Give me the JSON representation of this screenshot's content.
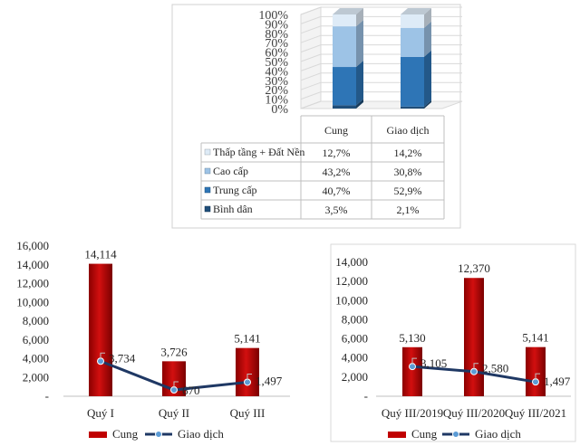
{
  "chart_data": [
    {
      "type": "bar",
      "subtype": "stacked-100-3d-with-data-table",
      "categories": [
        "Cung",
        "Giao dịch"
      ],
      "series": [
        {
          "name": "Bình dân",
          "values": [
            3.5,
            2.1
          ],
          "labels": [
            "3,5%",
            "2,1%"
          ],
          "color": "#1F4E79"
        },
        {
          "name": "Trung cấp",
          "values": [
            40.7,
            52.9
          ],
          "labels": [
            "40,7%",
            "52,9%"
          ],
          "color": "#2E75B6"
        },
        {
          "name": "Cao cấp",
          "values": [
            43.2,
            30.8
          ],
          "labels": [
            "43,2%",
            "30,8%"
          ],
          "color": "#9DC3E6"
        },
        {
          "name": "Thấp tầng + Đất Nền",
          "values": [
            12.7,
            14.2
          ],
          "labels": [
            "12,7%",
            "14,2%"
          ],
          "color": "#DEEBF7"
        }
      ],
      "y_ticks": [
        "0%",
        "10%",
        "20%",
        "30%",
        "40%",
        "50%",
        "60%",
        "70%",
        "80%",
        "90%",
        "100%"
      ],
      "ylim": [
        0,
        100
      ],
      "grid": true
    },
    {
      "type": "bar",
      "subtype": "bar-line-combo",
      "categories": [
        "Quý I",
        "Quý II",
        "Quý III"
      ],
      "series": [
        {
          "name": "Cung",
          "type": "bar",
          "values": [
            14114,
            3726,
            5141
          ],
          "labels": [
            "14,114",
            "3,726",
            "5,141"
          ],
          "color": "#C00000"
        },
        {
          "name": "Giao dịch",
          "type": "line",
          "values": [
            3734,
            670,
            1497
          ],
          "labels": [
            "3,734",
            "670",
            "1,497"
          ],
          "color": "#1F3864"
        }
      ],
      "y_ticks": [
        "-",
        "2,000",
        "4,000",
        "6,000",
        "8,000",
        "10,000",
        "12,000",
        "14,000",
        "16,000"
      ],
      "ylim": [
        0,
        16000
      ],
      "grid": false,
      "legend": "bottom"
    },
    {
      "type": "bar",
      "subtype": "bar-line-combo",
      "categories": [
        "Quý III/2019",
        "Quý III/2020",
        "Quý III/2021"
      ],
      "series": [
        {
          "name": "Cung",
          "type": "bar",
          "values": [
            5130,
            12370,
            5141
          ],
          "labels": [
            "5,130",
            "12,370",
            "5,141"
          ],
          "color": "#C00000"
        },
        {
          "name": "Giao dịch",
          "type": "line",
          "values": [
            3105,
            2580,
            1497
          ],
          "labels": [
            "3,105",
            "2,580",
            "1,497"
          ],
          "color": "#1F3864"
        }
      ],
      "y_ticks": [
        "-",
        "2,000",
        "4,000",
        "6,000",
        "8,000",
        "10,000",
        "12,000",
        "14,000"
      ],
      "ylim": [
        0,
        14000
      ],
      "grid": false,
      "legend": "bottom"
    }
  ]
}
